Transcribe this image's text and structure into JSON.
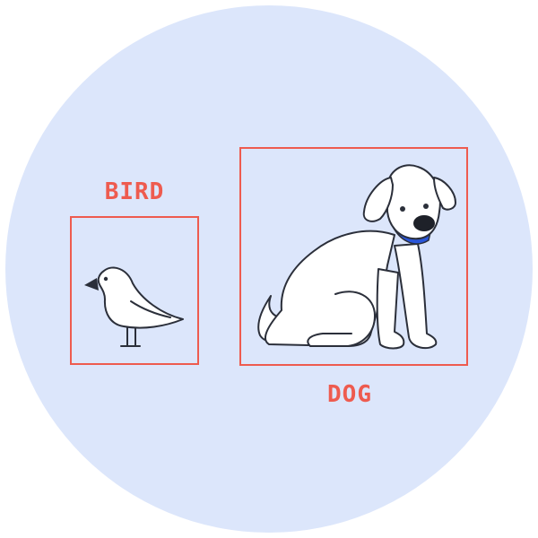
{
  "colors": {
    "background_circle": "#dce6fb",
    "box_stroke": "#ee5b4f",
    "label_text": "#ee5b4f",
    "outline": "#2b2f3a",
    "animal_fill": "#ffffff",
    "collar": "#2a56d9",
    "nose": "#1e2129"
  },
  "detections": [
    {
      "label": "BIRD",
      "object": "bird"
    },
    {
      "label": "DOG",
      "object": "dog"
    }
  ]
}
